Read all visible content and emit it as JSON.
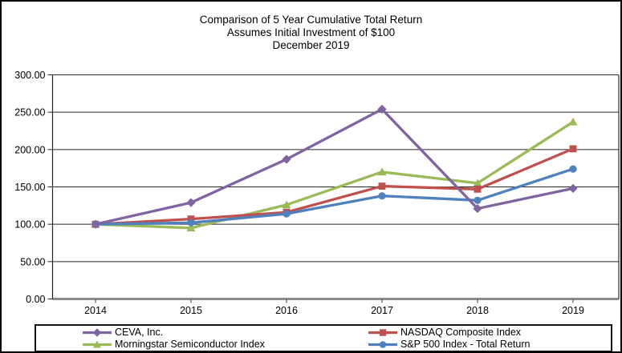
{
  "chart_data": {
    "type": "line",
    "title": "Comparison of 5 Year Cumulative Total Return",
    "title_lines": [
      "Comparison of 5 Year Cumulative Total Return",
      "Assumes Initial Investment of $100",
      "December 2019"
    ],
    "categories": [
      "2014",
      "2015",
      "2016",
      "2017",
      "2018",
      "2019"
    ],
    "series": [
      {
        "name": "CEVA, Inc.",
        "color": "#8064A2",
        "marker": "diamond",
        "values": [
          100,
          129,
          187,
          254,
          121,
          148
        ]
      },
      {
        "name": "NASDAQ Composite Index",
        "color": "#C0504D",
        "marker": "square",
        "values": [
          100,
          107,
          116,
          151,
          147,
          201
        ]
      },
      {
        "name": "Morningstar Semiconductor Index",
        "color": "#9BBB59",
        "marker": "triangle",
        "values": [
          100,
          95,
          126,
          170,
          155,
          237
        ]
      },
      {
        "name": "S&P 500 Index - Total Return",
        "color": "#4F81BD",
        "marker": "circle",
        "values": [
          100,
          102,
          114,
          138,
          132,
          174
        ]
      }
    ],
    "y_axis": {
      "min": 0,
      "max": 300,
      "step": 50,
      "tick_values": [
        300,
        250,
        200,
        150,
        100,
        50,
        0
      ],
      "tick_labels": [
        "300.00",
        "250.00",
        "200.00",
        "150.00",
        "100.00",
        "50.00",
        "0.00"
      ]
    },
    "xlabel": "",
    "ylabel": "",
    "grid": true,
    "legend_position": "bottom",
    "legend_columns": 2
  }
}
